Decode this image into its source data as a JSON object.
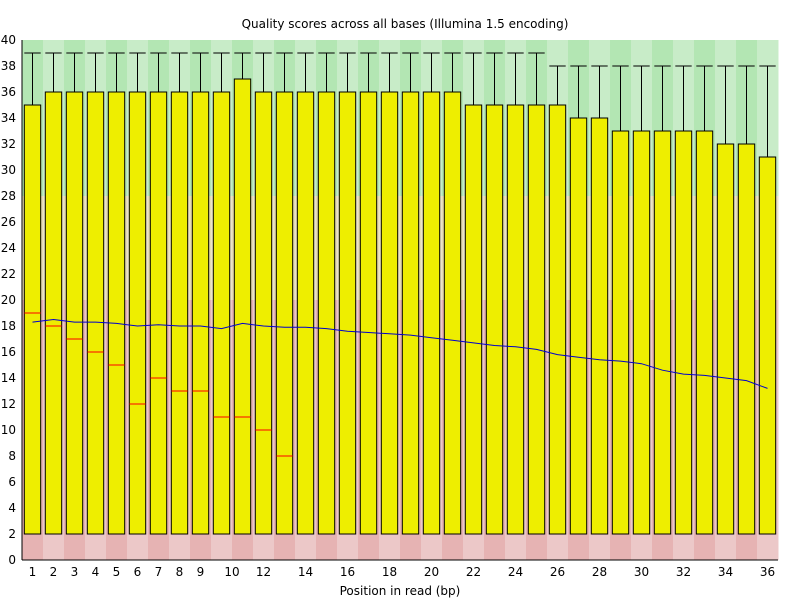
{
  "chart_data": {
    "type": "boxplot",
    "title": "Quality scores across all bases (Illumina 1.5 encoding)",
    "xlabel": "Position in read (bp)",
    "ylabel": "",
    "ylim": [
      0,
      40
    ],
    "yticks": [
      0,
      2,
      4,
      6,
      8,
      10,
      12,
      14,
      16,
      18,
      20,
      22,
      24,
      26,
      28,
      30,
      32,
      34,
      36,
      38,
      40
    ],
    "xtick_labels": [
      "1",
      "2",
      "3",
      "4",
      "5",
      "6",
      "7",
      "8",
      "9",
      "10",
      "12",
      "14",
      "16",
      "18",
      "20",
      "22",
      "24",
      "26",
      "28",
      "30",
      "32",
      "34",
      "36"
    ],
    "xtick_positions": [
      1,
      2,
      3,
      4,
      5,
      6,
      7,
      8,
      9,
      10.5,
      12,
      14,
      16,
      18,
      20,
      22,
      24,
      26,
      28,
      30,
      32,
      34,
      36
    ],
    "positions": [
      1,
      2,
      3,
      4,
      5,
      6,
      7,
      8,
      9,
      10,
      11,
      12,
      13,
      14,
      15,
      16,
      17,
      18,
      19,
      20,
      21,
      22,
      23,
      24,
      25,
      26,
      27,
      28,
      29,
      30,
      31,
      32,
      33,
      34,
      35,
      36
    ],
    "box_lower": [
      2,
      2,
      2,
      2,
      2,
      2,
      2,
      2,
      2,
      2,
      2,
      2,
      2,
      2,
      2,
      2,
      2,
      2,
      2,
      2,
      2,
      2,
      2,
      2,
      2,
      2,
      2,
      2,
      2,
      2,
      2,
      2,
      2,
      2,
      2,
      2
    ],
    "box_upper": [
      35,
      36,
      36,
      36,
      36,
      36,
      36,
      36,
      36,
      36,
      37,
      36,
      36,
      36,
      36,
      36,
      36,
      36,
      36,
      36,
      36,
      35,
      35,
      35,
      35,
      35,
      34,
      34,
      33,
      33,
      33,
      33,
      33,
      32,
      32,
      31
    ],
    "whisker_upper": [
      39,
      39,
      39,
      39,
      39,
      39,
      39,
      39,
      39,
      39,
      39,
      39,
      39,
      39,
      39,
      39,
      39,
      39,
      39,
      39,
      39,
      39,
      39,
      39,
      39,
      38,
      38,
      38,
      38,
      38,
      38,
      38,
      38,
      38,
      38,
      38
    ],
    "median": [
      19,
      18,
      17,
      16,
      15,
      12,
      14,
      13,
      13,
      11,
      11,
      10,
      8,
      null,
      null,
      null,
      null,
      null,
      null,
      null,
      null,
      null,
      null,
      null,
      null,
      null,
      null,
      null,
      null,
      null,
      null,
      null,
      null,
      null,
      null,
      null
    ],
    "mean": [
      18.3,
      18.5,
      18.3,
      18.3,
      18.2,
      18.0,
      18.1,
      18.0,
      18.0,
      17.8,
      18.2,
      18.0,
      17.9,
      17.9,
      17.8,
      17.6,
      17.5,
      17.4,
      17.3,
      17.1,
      16.9,
      16.7,
      16.5,
      16.4,
      16.2,
      15.8,
      15.6,
      15.4,
      15.3,
      15.1,
      14.6,
      14.3,
      14.2,
      14.0,
      13.8,
      13.2
    ],
    "colors": {
      "box": "#eeee00",
      "box_stroke": "#000000",
      "median": "#ff0000",
      "mean": "#0000cc",
      "good_band_a": "#b3e6b3",
      "good_band_b": "#c8ecc8",
      "warn_band_a": "#e6dcb3",
      "warn_band_b": "#ece4c8",
      "poor_band_a": "#e6b3b3",
      "poor_band_b": "#ecc8c8"
    },
    "bands": [
      {
        "from": 28,
        "to": 40,
        "kind": "good"
      },
      {
        "from": 20,
        "to": 28,
        "kind": "warn"
      },
      {
        "from": 0,
        "to": 20,
        "kind": "poor"
      }
    ]
  }
}
